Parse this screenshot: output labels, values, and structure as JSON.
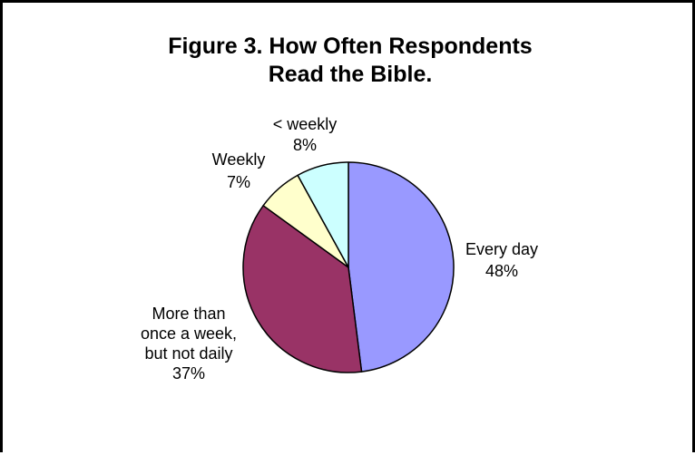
{
  "chart_data": {
    "type": "pie",
    "title_lines": [
      "Figure 3. How Often Respondents",
      "Read the Bible."
    ],
    "slices": [
      {
        "label_lines": [
          "Every day"
        ],
        "value_label": "48%",
        "value": 48,
        "color": "#9999ff"
      },
      {
        "label_lines": [
          "More than",
          "once a week,",
          "but not daily"
        ],
        "value_label": "37%",
        "value": 37,
        "color": "#993366"
      },
      {
        "label_lines": [
          "Weekly"
        ],
        "value_label": "7%",
        "value": 7,
        "color": "#ffffcc"
      },
      {
        "label_lines": [
          "< weekly"
        ],
        "value_label": "8%",
        "value": 8,
        "color": "#ccffff"
      }
    ],
    "legend": "none",
    "start": "12 o'clock, clockwise"
  }
}
